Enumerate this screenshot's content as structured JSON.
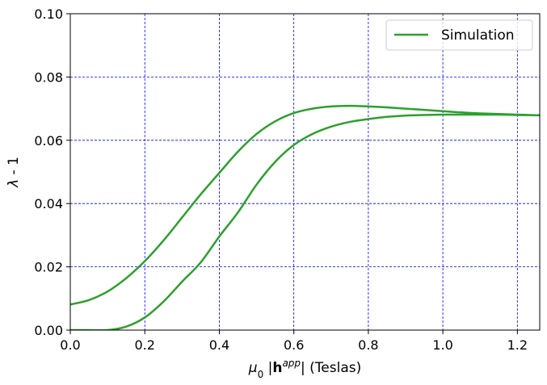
{
  "chart_data": {
    "type": "line",
    "xlabel": "μ₀ |h^app| (Teslas)",
    "ylabel": "λ - 1",
    "xlim": [
      0,
      1.26
    ],
    "ylim": [
      0,
      0.1
    ],
    "x_ticks": [
      "0.0",
      "0.2",
      "0.4",
      "0.6",
      "0.8",
      "1.0",
      "1.2"
    ],
    "y_ticks": [
      "0.00",
      "0.02",
      "0.04",
      "0.06",
      "0.08",
      "0.10"
    ],
    "grid": true,
    "legend_position": "top-right",
    "legend": [
      "Simulation"
    ],
    "series": [
      {
        "name": "Simulation",
        "color": "#2ca02c",
        "x": [
          0.0,
          0.05,
          0.1,
          0.15,
          0.2,
          0.25,
          0.3,
          0.35,
          0.4,
          0.45,
          0.5,
          0.55,
          0.6,
          0.65,
          0.7,
          0.75,
          0.8,
          0.85,
          0.9,
          0.95,
          1.0,
          1.05,
          1.1,
          1.15,
          1.2,
          1.26,
          1.2,
          1.15,
          1.1,
          1.05,
          1.0,
          0.95,
          0.9,
          0.85,
          0.8,
          0.75,
          0.7,
          0.65,
          0.6,
          0.55,
          0.5,
          0.45,
          0.4,
          0.35,
          0.3,
          0.25,
          0.2,
          0.15,
          0.1,
          0.05,
          0.0
        ],
        "y": [
          0.0081,
          0.0095,
          0.0122,
          0.0164,
          0.0218,
          0.0283,
          0.0356,
          0.0429,
          0.0497,
          0.0564,
          0.062,
          0.066,
          0.0686,
          0.07,
          0.0707,
          0.0709,
          0.0707,
          0.0704,
          0.07,
          0.0696,
          0.0692,
          0.0688,
          0.0685,
          0.0683,
          0.0681,
          0.0679,
          0.068,
          0.0681,
          0.0681,
          0.0681,
          0.0681,
          0.068,
          0.0678,
          0.0674,
          0.0667,
          0.0658,
          0.0643,
          0.062,
          0.0585,
          0.0532,
          0.046,
          0.0372,
          0.0296,
          0.0214,
          0.0153,
          0.009,
          0.004,
          0.0011,
          0.0,
          0.0,
          0.0
        ]
      }
    ]
  }
}
